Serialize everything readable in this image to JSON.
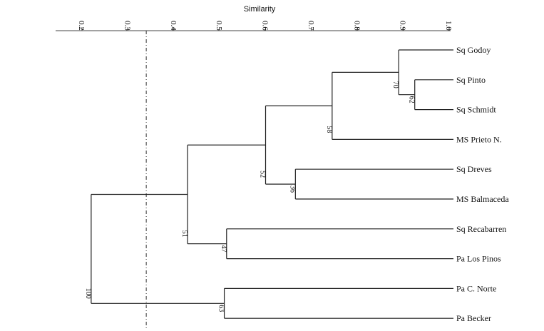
{
  "chart_data": {
    "type": "dendrogram",
    "xlabel": "Similarity",
    "xlim": [
      0.1,
      1.0
    ],
    "ticks": [
      "0.2",
      "0.3",
      "0.4",
      "0.5",
      "0.6",
      "0.7",
      "0.8",
      "0.9",
      "1.0"
    ],
    "cutoff_similarity": 0.34,
    "leaves": [
      "Sq Godoy",
      "Sq Pinto",
      "Sq Schmidt",
      "MS Prieto N.",
      "Sq Dreves",
      "MS Balmaceda",
      "Sq Recabarren",
      "Pa Los Pinos",
      "Pa C. Norte",
      "Pa Becker"
    ],
    "nodes": [
      {
        "id": "n1",
        "children": [
          "Sq Pinto",
          "Sq Schmidt"
        ],
        "similarity": 0.925,
        "support": "62"
      },
      {
        "id": "n2",
        "children": [
          "Sq Godoy",
          "n1"
        ],
        "similarity": 0.89,
        "support": "70"
      },
      {
        "id": "n3",
        "children": [
          "n2",
          "MS Prieto N."
        ],
        "similarity": 0.745,
        "support": "58"
      },
      {
        "id": "n4",
        "children": [
          "Sq Dreves",
          "MS Balmaceda"
        ],
        "similarity": 0.665,
        "support": "36"
      },
      {
        "id": "n5",
        "children": [
          "n3",
          "n4"
        ],
        "similarity": 0.6,
        "support": "52"
      },
      {
        "id": "n6",
        "children": [
          "Sq Recabarren",
          "Pa Los Pinos"
        ],
        "similarity": 0.515,
        "support": "47"
      },
      {
        "id": "n7",
        "children": [
          "n5",
          "n6"
        ],
        "similarity": 0.43,
        "support": "51"
      },
      {
        "id": "n8",
        "children": [
          "Pa C. Norte",
          "Pa Becker"
        ],
        "similarity": 0.51,
        "support": "63"
      },
      {
        "id": "n9",
        "children": [
          "n7",
          "n8"
        ],
        "similarity": 0.22,
        "support": "100"
      }
    ]
  }
}
